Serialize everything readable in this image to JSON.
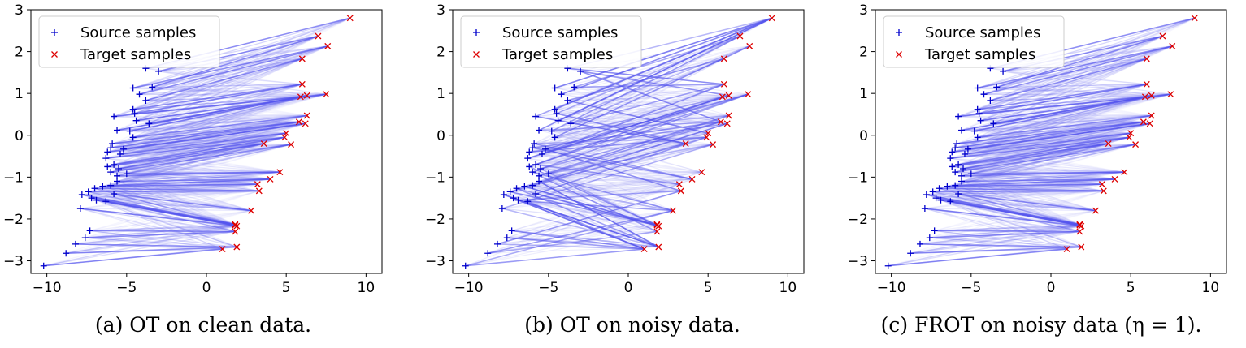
{
  "chart_data": [
    {
      "type": "scatter",
      "panel": "a",
      "caption": "(a)  OT on clean data.",
      "legend": [
        "Source samples",
        "Target samples"
      ],
      "legend_position": "top-left",
      "xlim": [
        -11,
        11
      ],
      "ylim": [
        -3.3,
        3.0
      ],
      "xticks": [
        -10,
        -5,
        0,
        5,
        10
      ],
      "yticks": [
        -3,
        -2,
        -1,
        0,
        1,
        2,
        3
      ],
      "coupling": "clean",
      "series": [
        {
          "name": "Source samples",
          "marker": "+",
          "color": "#0000cc",
          "x": [
            -3.8,
            -3.0,
            -3.4,
            -4.6,
            -4.2,
            -3.8,
            -4.6,
            -4.5,
            -5.8,
            -4.4,
            -3.6,
            -5.6,
            -4.8,
            -4.6,
            -5.9,
            -6.0,
            -5.2,
            -6.2,
            -5.4,
            -6.3,
            -5.8,
            -6.2,
            -5.5,
            -6.0,
            -5.0,
            -5.6,
            -5.6,
            -6.0,
            -6.5,
            -7.0,
            -7.4,
            -5.8,
            -7.8,
            -7.2,
            -6.9,
            -6.3,
            -7.9,
            -7.3,
            -7.6,
            -8.2,
            -8.8,
            -10.2
          ],
          "y": [
            1.6,
            1.53,
            1.15,
            1.13,
            0.98,
            0.83,
            0.62,
            0.52,
            0.45,
            0.35,
            0.28,
            0.12,
            0.1,
            -0.05,
            -0.2,
            -0.3,
            -0.33,
            -0.4,
            -0.45,
            -0.55,
            -0.7,
            -0.75,
            -0.8,
            -0.88,
            -0.92,
            -0.97,
            -1.1,
            -1.2,
            -1.22,
            -1.27,
            -1.35,
            -1.4,
            -1.42,
            -1.5,
            -1.55,
            -1.58,
            -1.75,
            -2.28,
            -2.45,
            -2.6,
            -2.82,
            -3.12
          ]
        },
        {
          "name": "Target samples",
          "marker": "x",
          "color": "#dd0000",
          "x": [
            9.0,
            7.0,
            7.6,
            6.0,
            6.0,
            7.5,
            5.9,
            6.3,
            6.3,
            6.2,
            5.8,
            5.0,
            4.9,
            5.3,
            3.6,
            4.6,
            4.0,
            3.2,
            3.3,
            2.8,
            1.8,
            1.8,
            1.9,
            1.8,
            1.0,
            1.9
          ],
          "y": [
            2.8,
            2.37,
            2.13,
            1.83,
            1.22,
            0.98,
            0.92,
            0.95,
            0.47,
            0.28,
            0.32,
            0.05,
            -0.05,
            -0.22,
            -0.2,
            -0.88,
            -1.05,
            -1.17,
            -1.33,
            -1.8,
            -2.13,
            -2.15,
            -2.17,
            -2.3,
            -2.72,
            -2.67
          ]
        }
      ]
    },
    {
      "type": "scatter",
      "panel": "b",
      "caption": "(b)  OT on noisy data.",
      "legend": [
        "Source samples",
        "Target samples"
      ],
      "legend_position": "top-left",
      "xlim": [
        -11,
        11
      ],
      "ylim": [
        -3.3,
        3.0
      ],
      "xticks": [
        -10,
        -5,
        0,
        5,
        10
      ],
      "yticks": [
        -3,
        -2,
        -1,
        0,
        1,
        2,
        3
      ],
      "coupling": "noisy",
      "series": [
        {
          "name": "Source samples",
          "marker": "+",
          "color": "#0000cc",
          "x": [
            -3.8,
            -3.0,
            -3.4,
            -4.6,
            -4.2,
            -3.8,
            -4.6,
            -4.5,
            -5.8,
            -4.4,
            -3.6,
            -5.6,
            -4.8,
            -4.6,
            -5.9,
            -6.0,
            -5.2,
            -6.2,
            -5.4,
            -6.3,
            -5.8,
            -6.2,
            -5.5,
            -6.0,
            -5.0,
            -5.6,
            -5.6,
            -6.0,
            -6.5,
            -7.0,
            -7.4,
            -5.8,
            -7.8,
            -7.2,
            -6.9,
            -6.3,
            -7.9,
            -7.3,
            -7.6,
            -8.2,
            -8.8,
            -10.2
          ],
          "y": [
            1.6,
            1.53,
            1.15,
            1.13,
            0.98,
            0.83,
            0.62,
            0.52,
            0.45,
            0.35,
            0.28,
            0.12,
            0.1,
            -0.05,
            -0.2,
            -0.3,
            -0.33,
            -0.4,
            -0.45,
            -0.55,
            -0.7,
            -0.75,
            -0.8,
            -0.88,
            -0.92,
            -0.97,
            -1.1,
            -1.2,
            -1.22,
            -1.27,
            -1.35,
            -1.4,
            -1.42,
            -1.5,
            -1.55,
            -1.58,
            -1.75,
            -2.28,
            -2.45,
            -2.6,
            -2.82,
            -3.12
          ]
        },
        {
          "name": "Target samples",
          "marker": "x",
          "color": "#dd0000",
          "x": [
            9.0,
            7.0,
            7.6,
            6.0,
            6.0,
            7.5,
            5.9,
            6.3,
            6.3,
            6.2,
            5.8,
            5.0,
            4.9,
            5.3,
            3.6,
            4.6,
            4.0,
            3.2,
            3.3,
            2.8,
            1.8,
            1.8,
            1.9,
            1.8,
            1.0,
            1.9
          ],
          "y": [
            2.8,
            2.37,
            2.13,
            1.83,
            1.22,
            0.98,
            0.92,
            0.95,
            0.47,
            0.28,
            0.32,
            0.05,
            -0.05,
            -0.22,
            -0.2,
            -0.88,
            -1.05,
            -1.17,
            -1.33,
            -1.8,
            -2.13,
            -2.15,
            -2.17,
            -2.3,
            -2.72,
            -2.67
          ]
        }
      ]
    },
    {
      "type": "scatter",
      "panel": "c",
      "caption": "(c)  FROT on noisy data (η = 1).",
      "legend": [
        "Source samples",
        "Target samples"
      ],
      "legend_position": "top-left",
      "xlim": [
        -11,
        11
      ],
      "ylim": [
        -3.3,
        3.0
      ],
      "xticks": [
        -10,
        -5,
        0,
        5,
        10
      ],
      "yticks": [
        -3,
        -2,
        -1,
        0,
        1,
        2,
        3
      ],
      "coupling": "clean",
      "series": [
        {
          "name": "Source samples",
          "marker": "+",
          "color": "#0000cc",
          "x": [
            -3.8,
            -3.0,
            -3.4,
            -4.6,
            -4.2,
            -3.8,
            -4.6,
            -4.5,
            -5.8,
            -4.4,
            -3.6,
            -5.6,
            -4.8,
            -4.6,
            -5.9,
            -6.0,
            -5.2,
            -6.2,
            -5.4,
            -6.3,
            -5.8,
            -6.2,
            -5.5,
            -6.0,
            -5.0,
            -5.6,
            -5.6,
            -6.0,
            -6.5,
            -7.0,
            -7.4,
            -5.8,
            -7.8,
            -7.2,
            -6.9,
            -6.3,
            -7.9,
            -7.3,
            -7.6,
            -8.2,
            -8.8,
            -10.2
          ],
          "y": [
            1.6,
            1.53,
            1.15,
            1.13,
            0.98,
            0.83,
            0.62,
            0.52,
            0.45,
            0.35,
            0.28,
            0.12,
            0.1,
            -0.05,
            -0.2,
            -0.3,
            -0.33,
            -0.4,
            -0.45,
            -0.55,
            -0.7,
            -0.75,
            -0.8,
            -0.88,
            -0.92,
            -0.97,
            -1.1,
            -1.2,
            -1.22,
            -1.27,
            -1.35,
            -1.4,
            -1.42,
            -1.5,
            -1.55,
            -1.58,
            -1.75,
            -2.28,
            -2.45,
            -2.6,
            -2.82,
            -3.12
          ]
        },
        {
          "name": "Target samples",
          "marker": "x",
          "color": "#dd0000",
          "x": [
            9.0,
            7.0,
            7.6,
            6.0,
            6.0,
            7.5,
            5.9,
            6.3,
            6.3,
            6.2,
            5.8,
            5.0,
            4.9,
            5.3,
            3.6,
            4.6,
            4.0,
            3.2,
            3.3,
            2.8,
            1.8,
            1.8,
            1.9,
            1.8,
            1.0,
            1.9
          ],
          "y": [
            2.8,
            2.37,
            2.13,
            1.83,
            1.22,
            0.98,
            0.92,
            0.95,
            0.47,
            0.28,
            0.32,
            0.05,
            -0.05,
            -0.22,
            -0.2,
            -0.88,
            -1.05,
            -1.17,
            -1.33,
            -1.8,
            -2.13,
            -2.15,
            -2.17,
            -2.3,
            -2.72,
            -2.67
          ]
        }
      ]
    }
  ],
  "colors": {
    "source": "#0000cc",
    "target": "#dd0000",
    "coupling_line": "#5555ee"
  }
}
